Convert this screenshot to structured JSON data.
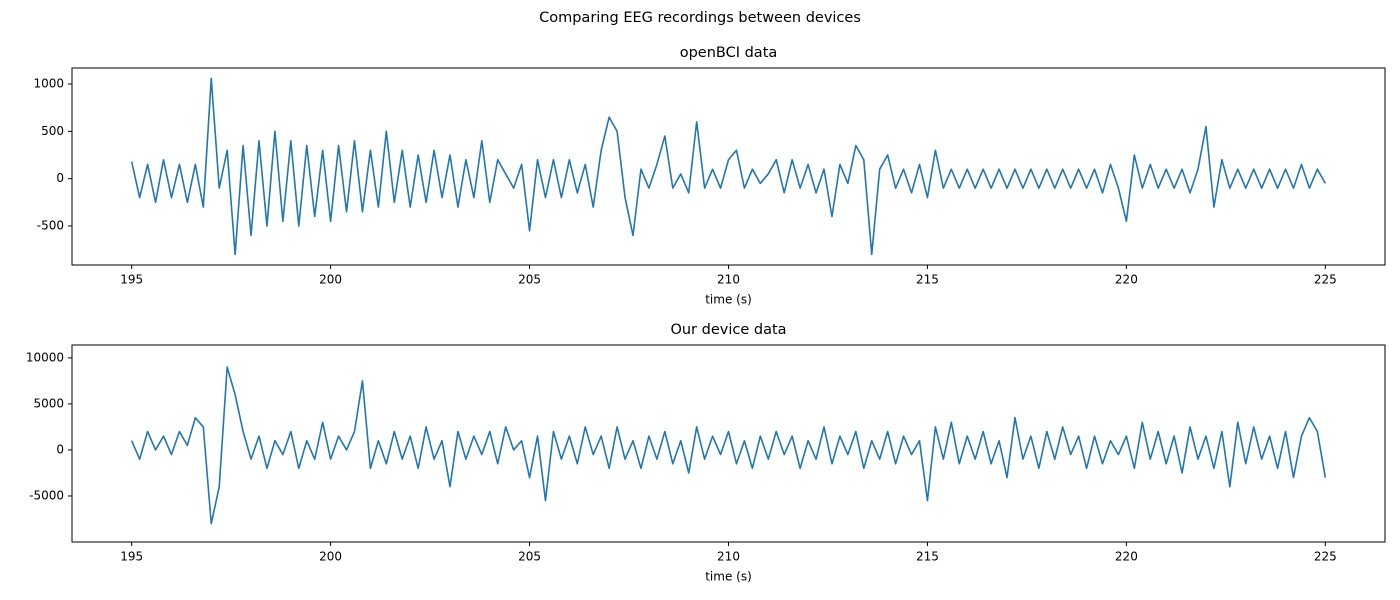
{
  "title": "Comparing EEG recordings between devices",
  "chart_data": [
    {
      "type": "line",
      "title": "openBCI data",
      "xlabel": "time (s)",
      "color": "#1f77b4",
      "xlim": [
        193.5,
        226.5
      ],
      "xticks": [
        195,
        200,
        205,
        210,
        215,
        220,
        225
      ],
      "ylim": [
        -912,
        1169
      ],
      "yticks": [
        -500,
        0,
        500,
        1000
      ],
      "x": [
        195,
        195.2,
        195.4,
        195.6,
        195.8,
        196,
        196.2,
        196.4,
        196.6,
        196.8,
        197,
        197.2,
        197.4,
        197.6,
        197.8,
        198,
        198.2,
        198.4,
        198.6,
        198.8,
        199,
        199.2,
        199.4,
        199.6,
        199.8,
        200,
        200.2,
        200.4,
        200.6,
        200.8,
        201,
        201.2,
        201.4,
        201.6,
        201.8,
        202,
        202.2,
        202.4,
        202.6,
        202.8,
        203,
        203.2,
        203.4,
        203.6,
        203.8,
        204,
        204.2,
        204.4,
        204.6,
        204.8,
        205,
        205.2,
        205.4,
        205.6,
        205.8,
        206,
        206.2,
        206.4,
        206.6,
        206.8,
        207,
        207.2,
        207.4,
        207.6,
        207.8,
        208,
        208.2,
        208.4,
        208.6,
        208.8,
        209,
        209.2,
        209.4,
        209.6,
        209.8,
        210,
        210.2,
        210.4,
        210.6,
        210.8,
        211,
        211.2,
        211.4,
        211.6,
        211.8,
        212,
        212.2,
        212.4,
        212.6,
        212.8,
        213,
        213.2,
        213.4,
        213.6,
        213.8,
        214,
        214.2,
        214.4,
        214.6,
        214.8,
        215,
        215.2,
        215.4,
        215.6,
        215.8,
        216,
        216.2,
        216.4,
        216.6,
        216.8,
        217,
        217.2,
        217.4,
        217.6,
        217.8,
        218,
        218.2,
        218.4,
        218.6,
        218.8,
        219,
        219.2,
        219.4,
        219.6,
        219.8,
        220,
        220.2,
        220.4,
        220.6,
        220.8,
        221,
        221.2,
        221.4,
        221.6,
        221.8,
        222,
        222.2,
        222.4,
        222.6,
        222.8,
        223,
        223.2,
        223.4,
        223.6,
        223.8,
        224,
        224.2,
        224.4,
        224.6,
        224.8,
        225
      ],
      "values": [
        180,
        -200,
        150,
        -250,
        200,
        -200,
        150,
        -250,
        150,
        -300,
        1060,
        -100,
        300,
        -800,
        350,
        -600,
        400,
        -500,
        500,
        -450,
        400,
        -500,
        350,
        -400,
        300,
        -450,
        350,
        -350,
        400,
        -350,
        300,
        -300,
        500,
        -250,
        300,
        -300,
        250,
        -250,
        300,
        -200,
        250,
        -300,
        200,
        -200,
        400,
        -250,
        200,
        50,
        -100,
        150,
        -550,
        200,
        -200,
        200,
        -200,
        200,
        -150,
        150,
        -300,
        300,
        650,
        500,
        -200,
        -600,
        100,
        -100,
        150,
        450,
        -100,
        50,
        -150,
        600,
        -100,
        100,
        -100,
        200,
        300,
        -100,
        100,
        -50,
        50,
        200,
        -150,
        200,
        -100,
        150,
        -150,
        100,
        -400,
        150,
        -50,
        350,
        200,
        -800,
        100,
        250,
        -100,
        100,
        -150,
        150,
        -200,
        300,
        -100,
        100,
        -100,
        100,
        -100,
        100,
        -100,
        100,
        -100,
        100,
        -100,
        100,
        -100,
        100,
        -100,
        100,
        -100,
        100,
        -100,
        100,
        -150,
        150,
        -100,
        -450,
        250,
        -100,
        150,
        -100,
        100,
        -100,
        100,
        -150,
        100,
        550,
        -300,
        200,
        -100,
        100,
        -100,
        100,
        -100,
        100,
        -100,
        100,
        -100,
        150,
        -100,
        100,
        -50
      ]
    },
    {
      "type": "line",
      "title": "Our device data",
      "xlabel": "time (s)",
      "color": "#1f77b4",
      "xlim": [
        193.5,
        226.5
      ],
      "xticks": [
        195,
        200,
        205,
        210,
        215,
        220,
        225
      ],
      "ylim": [
        -10000,
        11400
      ],
      "yticks": [
        -5000,
        0,
        5000,
        10000
      ],
      "x": [
        195,
        195.2,
        195.4,
        195.6,
        195.8,
        196,
        196.2,
        196.4,
        196.6,
        196.8,
        197,
        197.2,
        197.4,
        197.6,
        197.8,
        198,
        198.2,
        198.4,
        198.6,
        198.8,
        199,
        199.2,
        199.4,
        199.6,
        199.8,
        200,
        200.2,
        200.4,
        200.6,
        200.8,
        201,
        201.2,
        201.4,
        201.6,
        201.8,
        202,
        202.2,
        202.4,
        202.6,
        202.8,
        203,
        203.2,
        203.4,
        203.6,
        203.8,
        204,
        204.2,
        204.4,
        204.6,
        204.8,
        205,
        205.2,
        205.4,
        205.6,
        205.8,
        206,
        206.2,
        206.4,
        206.6,
        206.8,
        207,
        207.2,
        207.4,
        207.6,
        207.8,
        208,
        208.2,
        208.4,
        208.6,
        208.8,
        209,
        209.2,
        209.4,
        209.6,
        209.8,
        210,
        210.2,
        210.4,
        210.6,
        210.8,
        211,
        211.2,
        211.4,
        211.6,
        211.8,
        212,
        212.2,
        212.4,
        212.6,
        212.8,
        213,
        213.2,
        213.4,
        213.6,
        213.8,
        214,
        214.2,
        214.4,
        214.6,
        214.8,
        215,
        215.2,
        215.4,
        215.6,
        215.8,
        216,
        216.2,
        216.4,
        216.6,
        216.8,
        217,
        217.2,
        217.4,
        217.6,
        217.8,
        218,
        218.2,
        218.4,
        218.6,
        218.8,
        219,
        219.2,
        219.4,
        219.6,
        219.8,
        220,
        220.2,
        220.4,
        220.6,
        220.8,
        221,
        221.2,
        221.4,
        221.6,
        221.8,
        222,
        222.2,
        222.4,
        222.6,
        222.8,
        223,
        223.2,
        223.4,
        223.6,
        223.8,
        224,
        224.2,
        224.4,
        224.6,
        224.8,
        225
      ],
      "values": [
        1000,
        -1000,
        2000,
        0,
        1500,
        -500,
        2000,
        500,
        3500,
        2500,
        -8000,
        -4000,
        9000,
        6000,
        2000,
        -1000,
        1500,
        -2000,
        1000,
        -500,
        2000,
        -2000,
        1000,
        -1000,
        3000,
        -1000,
        1500,
        0,
        2000,
        7500,
        -2000,
        1000,
        -1500,
        2000,
        -1000,
        1500,
        -2000,
        2500,
        -1000,
        1000,
        -4000,
        2000,
        -1000,
        1500,
        -500,
        2000,
        -1500,
        2500,
        0,
        1000,
        -3000,
        1500,
        -5500,
        2000,
        -1000,
        1500,
        -1500,
        2500,
        -500,
        1500,
        -2000,
        2500,
        -1000,
        1000,
        -2000,
        1500,
        -1000,
        2000,
        -1500,
        1000,
        -2500,
        2500,
        -1000,
        1500,
        -500,
        2000,
        -1500,
        1000,
        -2000,
        1500,
        -1000,
        2000,
        -500,
        1500,
        -2000,
        1000,
        -1000,
        2500,
        -1500,
        1500,
        -500,
        2000,
        -2000,
        1000,
        -1000,
        2000,
        -1500,
        1500,
        -500,
        1000,
        -5500,
        2500,
        -1000,
        3000,
        -1500,
        1500,
        -1000,
        2000,
        -1500,
        1000,
        -3000,
        3500,
        -1000,
        1500,
        -2000,
        2000,
        -1000,
        2500,
        -500,
        1500,
        -2000,
        1500,
        -1500,
        1000,
        -500,
        1500,
        -2000,
        3000,
        -1000,
        2000,
        -1500,
        1500,
        -2500,
        2500,
        -1000,
        1500,
        -2000,
        2000,
        -4000,
        3000,
        -1500,
        2500,
        -1000,
        1500,
        -2000,
        2000,
        -3000,
        1500,
        3500,
        2000,
        -3000
      ]
    }
  ]
}
